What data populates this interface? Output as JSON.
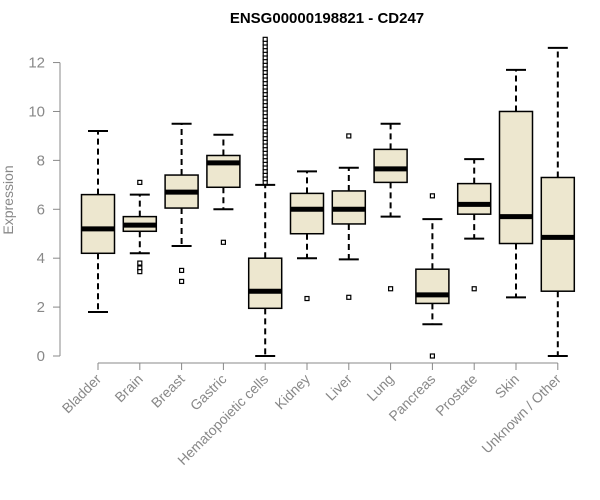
{
  "chart_data": {
    "type": "box",
    "title": "ENSG00000198821 - CD247",
    "xlabel": "",
    "ylabel": "Expression",
    "ylim": [
      0,
      12.5
    ],
    "yticks": [
      0,
      2,
      4,
      6,
      8,
      10,
      12
    ],
    "colors": {
      "box_fill": "#ede7cf",
      "box_stroke": "#000000",
      "axis": "#888888",
      "text": "#888888"
    },
    "categories": [
      "Bladder",
      "Brain",
      "Breast",
      "Gastric",
      "Hematopoietic cells",
      "Kidney",
      "Liver",
      "Lung",
      "Pancreas",
      "Prostate",
      "Skin",
      "Unknown / Other"
    ],
    "boxes": [
      {
        "name": "Bladder",
        "whisker_low": 1.8,
        "q1": 4.2,
        "median": 5.2,
        "q3": 6.6,
        "whisker_high": 9.2,
        "outliers": []
      },
      {
        "name": "Brain",
        "whisker_low": 4.2,
        "q1": 5.1,
        "median": 5.35,
        "q3": 5.7,
        "whisker_high": 6.6,
        "outliers": [
          7.1,
          3.8,
          3.6,
          3.45
        ]
      },
      {
        "name": "Breast",
        "whisker_low": 4.5,
        "q1": 6.05,
        "median": 6.7,
        "q3": 7.4,
        "whisker_high": 9.5,
        "outliers": [
          3.5,
          3.05
        ]
      },
      {
        "name": "Gastric",
        "whisker_low": 6.0,
        "q1": 6.9,
        "median": 7.9,
        "q3": 8.2,
        "whisker_high": 9.05,
        "outliers": [
          4.65
        ]
      },
      {
        "name": "Hematopoietic cells",
        "whisker_low": 0.0,
        "q1": 1.95,
        "median": 2.65,
        "q3": 4.0,
        "whisker_high": 7.0,
        "outliers": [
          7.1,
          7.25,
          7.4,
          7.55,
          7.7,
          7.85,
          8.0,
          8.15,
          8.3,
          8.45,
          8.6,
          8.75,
          8.9,
          9.05,
          9.2,
          9.35,
          9.5,
          9.65,
          9.8,
          9.95,
          10.1,
          10.25,
          10.4,
          10.55,
          10.7,
          10.85,
          11.0,
          11.15,
          11.3,
          11.45,
          11.6,
          11.75,
          11.9,
          12.05,
          12.2,
          12.35,
          12.5,
          12.65,
          12.8,
          12.95
        ]
      },
      {
        "name": "Kidney",
        "whisker_low": 4.0,
        "q1": 5.0,
        "median": 6.0,
        "q3": 6.65,
        "whisker_high": 7.55,
        "outliers": [
          2.35
        ]
      },
      {
        "name": "Liver",
        "whisker_low": 3.95,
        "q1": 5.4,
        "median": 6.0,
        "q3": 6.75,
        "whisker_high": 7.7,
        "outliers": [
          9.0,
          2.4
        ]
      },
      {
        "name": "Lung",
        "whisker_low": 5.7,
        "q1": 7.1,
        "median": 7.65,
        "q3": 8.45,
        "whisker_high": 9.5,
        "outliers": [
          2.75
        ]
      },
      {
        "name": "Pancreas",
        "whisker_low": 1.3,
        "q1": 2.15,
        "median": 2.5,
        "q3": 3.55,
        "whisker_high": 5.6,
        "outliers": [
          6.55,
          0.0
        ]
      },
      {
        "name": "Prostate",
        "whisker_low": 4.8,
        "q1": 5.8,
        "median": 6.2,
        "q3": 7.05,
        "whisker_high": 8.05,
        "outliers": [
          2.75
        ]
      },
      {
        "name": "Skin",
        "whisker_low": 2.4,
        "q1": 4.6,
        "median": 5.7,
        "q3": 10.0,
        "whisker_high": 11.7,
        "outliers": []
      },
      {
        "name": "Unknown / Other",
        "whisker_low": 0.0,
        "q1": 2.65,
        "median": 4.85,
        "q3": 7.3,
        "whisker_high": 12.6,
        "outliers": []
      }
    ]
  }
}
